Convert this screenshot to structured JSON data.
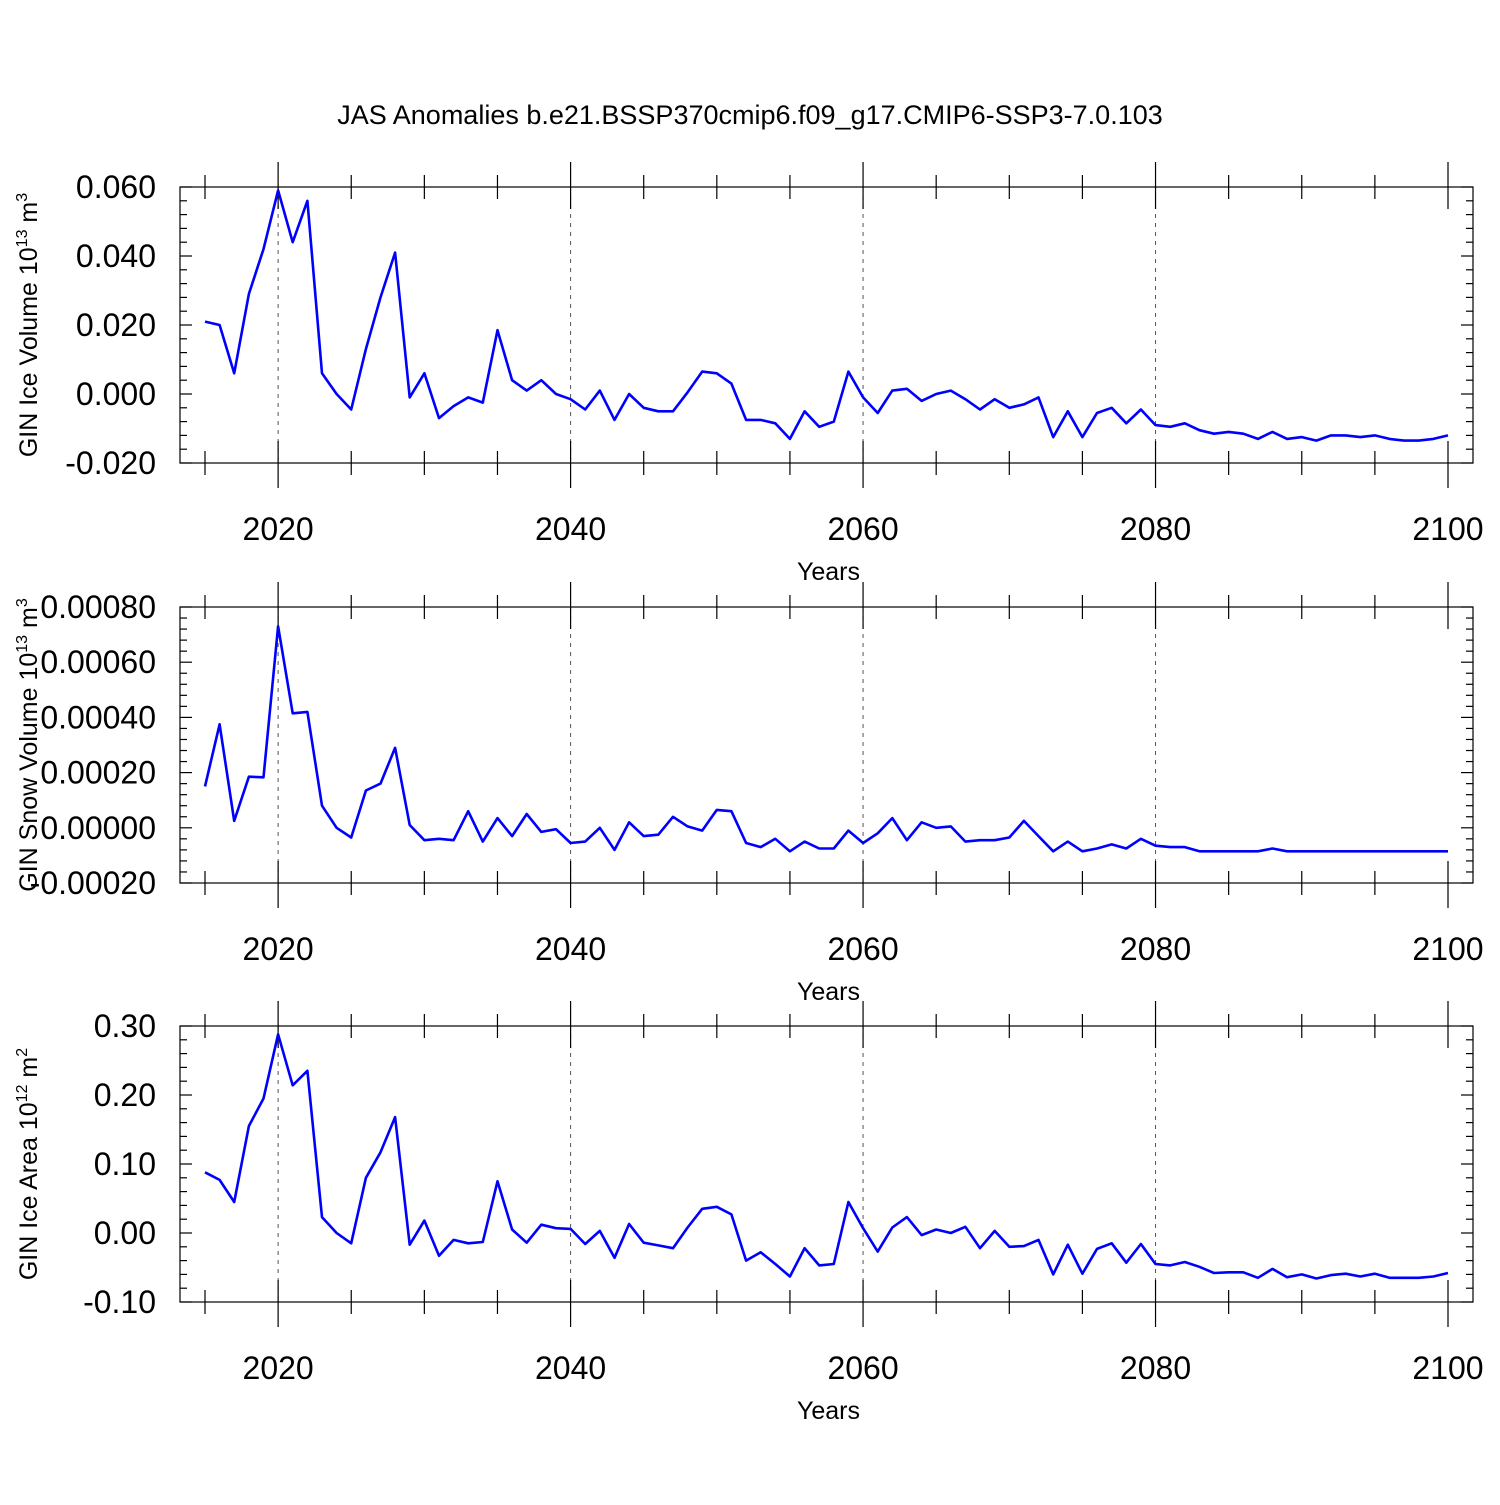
{
  "title": "JAS Anomalies b.e21.BSSP370cmip6.f09_g17.CMIP6-SSP3-7.0.103",
  "colors": {
    "line": "#0000ff",
    "grid": "#555555",
    "axis": "#000000"
  },
  "chart_data": [
    {
      "type": "line",
      "title": "",
      "xlabel": "Years",
      "ylabel": "GIN Ice Volume 10",
      "ylabel_sup": "13",
      "ylabel_unit": "m",
      "ylabel_unit_sup": "3",
      "xlim": [
        2015,
        2100
      ],
      "ylim": [
        -0.02,
        0.06
      ],
      "xticks": [
        2020,
        2040,
        2060,
        2080,
        2100
      ],
      "yticks": [
        -0.02,
        0.0,
        0.02,
        0.04,
        0.06
      ],
      "ytick_labels": [
        "-0.020",
        "0.000",
        "0.020",
        "0.040",
        "0.060"
      ],
      "grid": "vertical dashed at major x ticks",
      "series": [
        {
          "x": [
            2015,
            2016,
            2017,
            2018,
            2019,
            2020,
            2021,
            2022,
            2023,
            2024,
            2025,
            2026,
            2027,
            2028,
            2029,
            2030,
            2031,
            2032,
            2033,
            2034,
            2035,
            2036,
            2037,
            2038,
            2039,
            2040,
            2041,
            2042,
            2043,
            2044,
            2045,
            2046,
            2047,
            2048,
            2049,
            2050,
            2051,
            2052,
            2053,
            2054,
            2055,
            2056,
            2057,
            2058,
            2059,
            2060,
            2061,
            2062,
            2063,
            2064,
            2065,
            2066,
            2067,
            2068,
            2069,
            2070,
            2071,
            2072,
            2073,
            2074,
            2075,
            2076,
            2077,
            2078,
            2079,
            2080,
            2081,
            2082,
            2083,
            2084,
            2085,
            2086,
            2087,
            2088,
            2089,
            2090,
            2091,
            2092,
            2093,
            2094,
            2095,
            2096,
            2097,
            2098,
            2099,
            2100
          ],
          "values": [
            0.021,
            0.02,
            0.006,
            0.029,
            0.042,
            0.059,
            0.044,
            0.056,
            0.006,
            0.0,
            -0.0045,
            0.013,
            0.028,
            0.041,
            -0.001,
            0.006,
            -0.007,
            -0.0035,
            -0.001,
            -0.0025,
            0.0185,
            0.004,
            0.001,
            0.004,
            0.0,
            -0.0015,
            -0.0045,
            0.001,
            -0.0075,
            0.0,
            -0.004,
            -0.005,
            -0.005,
            0.0005,
            0.0065,
            0.006,
            0.003,
            -0.0075,
            -0.0075,
            -0.0085,
            -0.013,
            -0.005,
            -0.0095,
            -0.008,
            0.0065,
            -0.001,
            -0.0055,
            0.001,
            0.0015,
            -0.002,
            0.0,
            0.001,
            -0.0015,
            -0.0045,
            -0.0015,
            -0.004,
            -0.003,
            -0.001,
            -0.0125,
            -0.005,
            -0.0125,
            -0.0055,
            -0.004,
            -0.0085,
            -0.0045,
            -0.009,
            -0.0095,
            -0.0085,
            -0.0105,
            -0.0115,
            -0.011,
            -0.0115,
            -0.013,
            -0.011,
            -0.013,
            -0.0125,
            -0.0135,
            -0.012,
            -0.012,
            -0.0125,
            -0.012,
            -0.013,
            -0.0135,
            -0.0135,
            -0.013,
            -0.012
          ]
        }
      ]
    },
    {
      "type": "line",
      "title": "",
      "xlabel": "Years",
      "ylabel": "GIN Snow Volume 10",
      "ylabel_sup": "13",
      "ylabel_unit": "m",
      "ylabel_unit_sup": "3",
      "xlim": [
        2015,
        2100
      ],
      "ylim": [
        -0.0002,
        0.0008
      ],
      "xticks": [
        2020,
        2040,
        2060,
        2080,
        2100
      ],
      "yticks": [
        -0.0002,
        0.0,
        0.0002,
        0.0004,
        0.0006,
        0.0008
      ],
      "ytick_labels": [
        "-0.00020",
        "0.00000",
        "0.00020",
        "0.00040",
        "0.00060",
        "0.00080"
      ],
      "grid": "vertical dashed at major x ticks",
      "series": [
        {
          "x": [
            2015,
            2016,
            2017,
            2018,
            2019,
            2020,
            2021,
            2022,
            2023,
            2024,
            2025,
            2026,
            2027,
            2028,
            2029,
            2030,
            2031,
            2032,
            2033,
            2034,
            2035,
            2036,
            2037,
            2038,
            2039,
            2040,
            2041,
            2042,
            2043,
            2044,
            2045,
            2046,
            2047,
            2048,
            2049,
            2050,
            2051,
            2052,
            2053,
            2054,
            2055,
            2056,
            2057,
            2058,
            2059,
            2060,
            2061,
            2062,
            2063,
            2064,
            2065,
            2066,
            2067,
            2068,
            2069,
            2070,
            2071,
            2072,
            2073,
            2074,
            2075,
            2076,
            2077,
            2078,
            2079,
            2080,
            2081,
            2082,
            2083,
            2084,
            2085,
            2086,
            2087,
            2088,
            2089,
            2090,
            2091,
            2092,
            2093,
            2094,
            2095,
            2096,
            2097,
            2098,
            2099,
            2100
          ],
          "values": [
            0.00015,
            0.000375,
            2.5e-05,
            0.000185,
            0.000183,
            0.00073,
            0.000415,
            0.00042,
            8e-05,
            0.0,
            -3.5e-05,
            0.000135,
            0.00016,
            0.00029,
            1e-05,
            -4.5e-05,
            -4e-05,
            -4.5e-05,
            6e-05,
            -5e-05,
            3.5e-05,
            -3e-05,
            5e-05,
            -1.5e-05,
            -5e-06,
            -5.5e-05,
            -5e-05,
            0.0,
            -8e-05,
            2e-05,
            -3e-05,
            -2.5e-05,
            4e-05,
            5e-06,
            -1e-05,
            6.5e-05,
            6e-05,
            -5.5e-05,
            -7e-05,
            -4e-05,
            -8.5e-05,
            -5e-05,
            -7.5e-05,
            -7.5e-05,
            -1e-05,
            -5.5e-05,
            -2e-05,
            3.5e-05,
            -4.5e-05,
            2e-05,
            0.0,
            5e-06,
            -5e-05,
            -4.5e-05,
            -4.5e-05,
            -3.5e-05,
            2.5e-05,
            -3e-05,
            -8.5e-05,
            -5e-05,
            -8.5e-05,
            -7.5e-05,
            -6e-05,
            -7.5e-05,
            -4e-05,
            -6.5e-05,
            -7e-05,
            -7e-05,
            -8.5e-05,
            -8.5e-05,
            -8.5e-05,
            -8.5e-05,
            -8.5e-05,
            -7.5e-05,
            -8.5e-05,
            -8.5e-05,
            -8.5e-05,
            -8.5e-05,
            -8.5e-05,
            -8.5e-05,
            -8.5e-05,
            -8.5e-05,
            -8.5e-05,
            -8.5e-05,
            -8.5e-05,
            -8.5e-05
          ]
        }
      ]
    },
    {
      "type": "line",
      "title": "",
      "xlabel": "Years",
      "ylabel": "GIN Ice Area 10",
      "ylabel_sup": "12",
      "ylabel_unit": "m",
      "ylabel_unit_sup": "2",
      "xlim": [
        2015,
        2100
      ],
      "ylim": [
        -0.1,
        0.3
      ],
      "xticks": [
        2020,
        2040,
        2060,
        2080,
        2100
      ],
      "yticks": [
        -0.1,
        0.0,
        0.1,
        0.2,
        0.3
      ],
      "ytick_labels": [
        "-0.10",
        "0.00",
        "0.10",
        "0.20",
        "0.30"
      ],
      "grid": "vertical dashed at major x ticks",
      "series": [
        {
          "x": [
            2015,
            2016,
            2017,
            2018,
            2019,
            2020,
            2021,
            2022,
            2023,
            2024,
            2025,
            2026,
            2027,
            2028,
            2029,
            2030,
            2031,
            2032,
            2033,
            2034,
            2035,
            2036,
            2037,
            2038,
            2039,
            2040,
            2041,
            2042,
            2043,
            2044,
            2045,
            2046,
            2047,
            2048,
            2049,
            2050,
            2051,
            2052,
            2053,
            2054,
            2055,
            2056,
            2057,
            2058,
            2059,
            2060,
            2061,
            2062,
            2063,
            2064,
            2065,
            2066,
            2067,
            2068,
            2069,
            2070,
            2071,
            2072,
            2073,
            2074,
            2075,
            2076,
            2077,
            2078,
            2079,
            2080,
            2081,
            2082,
            2083,
            2084,
            2085,
            2086,
            2087,
            2088,
            2089,
            2090,
            2091,
            2092,
            2093,
            2094,
            2095,
            2096,
            2097,
            2098,
            2099,
            2100
          ],
          "values": [
            0.088,
            0.077,
            0.045,
            0.155,
            0.195,
            0.288,
            0.214,
            0.235,
            0.023,
            0.0,
            -0.015,
            0.08,
            0.117,
            0.168,
            -0.017,
            0.018,
            -0.033,
            -0.01,
            -0.015,
            -0.013,
            0.075,
            0.005,
            -0.014,
            0.012,
            0.007,
            0.006,
            -0.016,
            0.003,
            -0.036,
            0.013,
            -0.014,
            -0.018,
            -0.022,
            0.008,
            0.035,
            0.038,
            0.027,
            -0.04,
            -0.028,
            -0.045,
            -0.063,
            -0.022,
            -0.047,
            -0.045,
            0.045,
            0.007,
            -0.027,
            0.008,
            0.023,
            -0.003,
            0.005,
            0.0,
            0.009,
            -0.022,
            0.003,
            -0.02,
            -0.019,
            -0.01,
            -0.06,
            -0.017,
            -0.059,
            -0.023,
            -0.015,
            -0.043,
            -0.016,
            -0.045,
            -0.047,
            -0.042,
            -0.049,
            -0.058,
            -0.057,
            -0.057,
            -0.065,
            -0.052,
            -0.064,
            -0.06,
            -0.066,
            -0.061,
            -0.059,
            -0.063,
            -0.059,
            -0.065,
            -0.065,
            -0.065,
            -0.063,
            -0.058
          ]
        }
      ]
    }
  ]
}
